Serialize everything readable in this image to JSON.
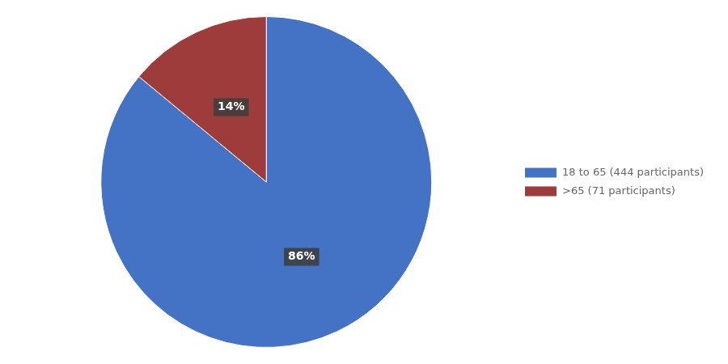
{
  "chart_data": {
    "type": "pie",
    "categories": [
      "18 to 65 (444 participants)",
      ">65 (71 participants)"
    ],
    "values": [
      86,
      14
    ],
    "value_labels": [
      "86%",
      "14%"
    ],
    "colors": [
      "#4472C4",
      "#9E3B3B"
    ],
    "data_labels": true,
    "legend": "right"
  }
}
